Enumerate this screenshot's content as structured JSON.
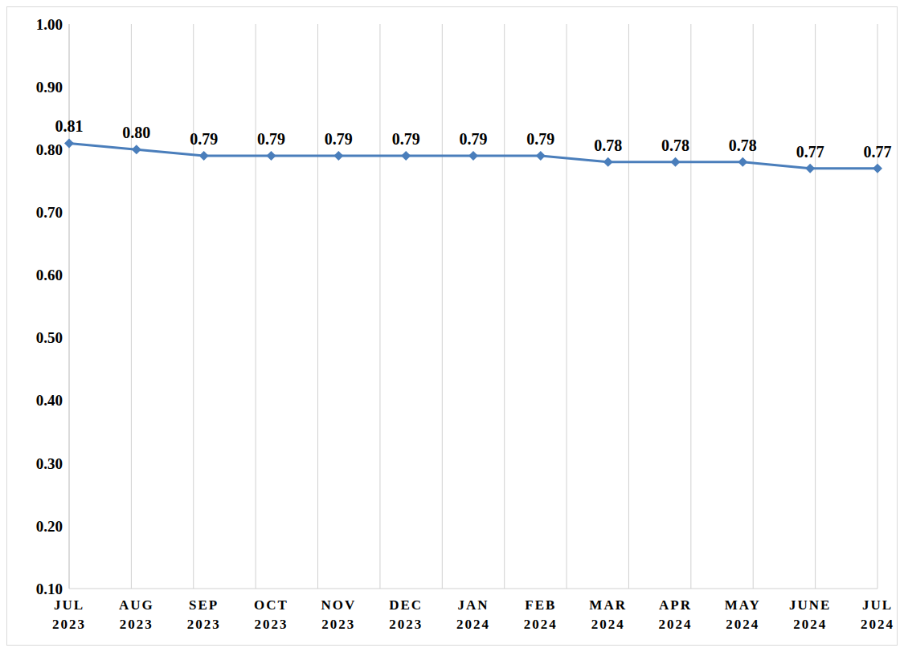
{
  "chart_data": {
    "type": "line",
    "categories": [
      "JUL 2023",
      "AUG 2023",
      "SEP 2023",
      "OCT 2023",
      "NOV 2023",
      "DEC 2023",
      "JAN 2024",
      "FEB 2024",
      "MAR 2024",
      "APR 2024",
      "MAY 2024",
      "JUNE 2024",
      "JUL 2024"
    ],
    "values": [
      0.81,
      0.8,
      0.79,
      0.79,
      0.79,
      0.79,
      0.79,
      0.79,
      0.78,
      0.78,
      0.78,
      0.77,
      0.77
    ],
    "value_labels": [
      "0.81",
      "0.80",
      "0.79",
      "0.79",
      "0.79",
      "0.79",
      "0.79",
      "0.79",
      "0.78",
      "0.78",
      "0.78",
      "0.77",
      "0.77"
    ],
    "color": "#4a7ebb",
    "marker": "diamond",
    "data_labels": true,
    "grid": true,
    "ylim": [
      0.1,
      1.0
    ],
    "yticks": [
      {
        "value": 0.1,
        "label": "0.10"
      },
      {
        "value": 0.2,
        "label": "0.20"
      },
      {
        "value": 0.3,
        "label": "0.30"
      },
      {
        "value": 0.4,
        "label": "0.40"
      },
      {
        "value": 0.5,
        "label": "0.50"
      },
      {
        "value": 0.6,
        "label": "0.60"
      },
      {
        "value": 0.7,
        "label": "0.70"
      },
      {
        "value": 0.8,
        "label": "0.80"
      },
      {
        "value": 0.9,
        "label": "0.90"
      },
      {
        "value": 1.0,
        "label": "1.00"
      }
    ]
  }
}
